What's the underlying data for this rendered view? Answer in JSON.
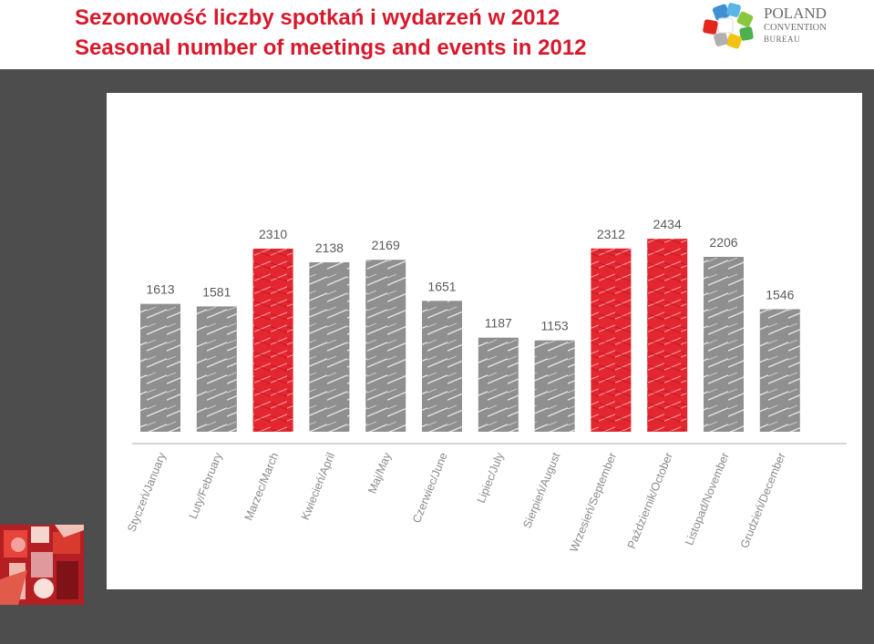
{
  "title": {
    "line_pl": "Sezonowość liczby spotkań i wydarzeń w 2012",
    "line_en": "Seasonal number of meetings and events in 2012"
  },
  "logo": {
    "line1": "POLAND",
    "line2": "CONVENTION",
    "line3": "BUREAU"
  },
  "colors": {
    "title": "#d7192d",
    "highlight_bar": "#e3262f",
    "regular_bar": "#8f8f8f",
    "background_panel": "#4d4d4d"
  },
  "chart_data": {
    "type": "bar",
    "title": "",
    "xlabel": "",
    "ylabel": "",
    "ylim": [
      0,
      2700
    ],
    "grid": false,
    "categories": [
      "Styczeń/January",
      "Luty/February",
      "Marzec/March",
      "Kwiecień/April",
      "Maj/May",
      "Czerwiec/June",
      "Lipiec/July",
      "Sierpień/August",
      "Wrzesień/September",
      "Październik/October",
      "Listopad/November",
      "Grudzień/December"
    ],
    "values": [
      1613,
      1581,
      2310,
      2138,
      2169,
      1651,
      1187,
      1153,
      2312,
      2434,
      2206,
      1546
    ],
    "highlighted": [
      false,
      false,
      true,
      false,
      false,
      false,
      false,
      false,
      true,
      true,
      false,
      false
    ]
  }
}
